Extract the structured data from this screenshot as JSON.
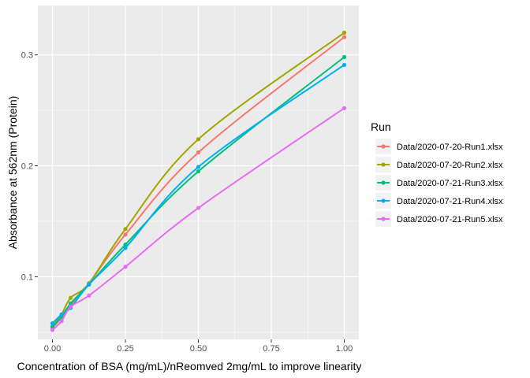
{
  "chart_data": {
    "type": "line",
    "title": "",
    "xlabel": "Concentration of BSA (mg/mL)/nReomved 2mg/mL to improve linearity",
    "ylabel": "Absorbance at 562nm (Protein)",
    "xlim": [
      -0.05,
      1.05
    ],
    "ylim": [
      0.0435,
      0.3445
    ],
    "x_ticks": [
      0.0,
      0.25,
      0.5,
      0.75,
      1.0
    ],
    "x_tick_labels": [
      "0.00",
      "0.25",
      "0.50",
      "0.75",
      "1.00"
    ],
    "y_ticks": [
      0.1,
      0.2,
      0.3
    ],
    "y_tick_labels": [
      "0.1",
      "0.2",
      "0.3"
    ],
    "grid": true,
    "legend": {
      "title": "Run",
      "placement": "right"
    },
    "x": [
      0.0,
      0.03125,
      0.0625,
      0.125,
      0.25,
      0.5,
      1.0
    ],
    "series": [
      {
        "name": "Data/2020-07-20-Run1.xlsx",
        "color": "#F8766D",
        "values": [
          0.054,
          0.063,
          0.074,
          0.094,
          0.138,
          0.212,
          0.316
        ]
      },
      {
        "name": "Data/2020-07-20-Run2.xlsx",
        "color": "#A3A500",
        "values": [
          0.055,
          0.066,
          0.081,
          0.094,
          0.143,
          0.224,
          0.32
        ]
      },
      {
        "name": "Data/2020-07-21-Run3.xlsx",
        "color": "#00BF7D",
        "values": [
          0.055,
          0.064,
          0.076,
          0.093,
          0.129,
          0.195,
          0.298
        ]
      },
      {
        "name": "Data/2020-07-21-Run4.xlsx",
        "color": "#00B0F6",
        "values": [
          0.058,
          0.066,
          0.072,
          0.093,
          0.126,
          0.199,
          0.291
        ]
      },
      {
        "name": "Data/2020-07-21-Run5.xlsx",
        "color": "#E76BF3",
        "values": [
          0.052,
          0.06,
          0.073,
          0.083,
          0.109,
          0.162,
          0.252
        ]
      }
    ]
  }
}
